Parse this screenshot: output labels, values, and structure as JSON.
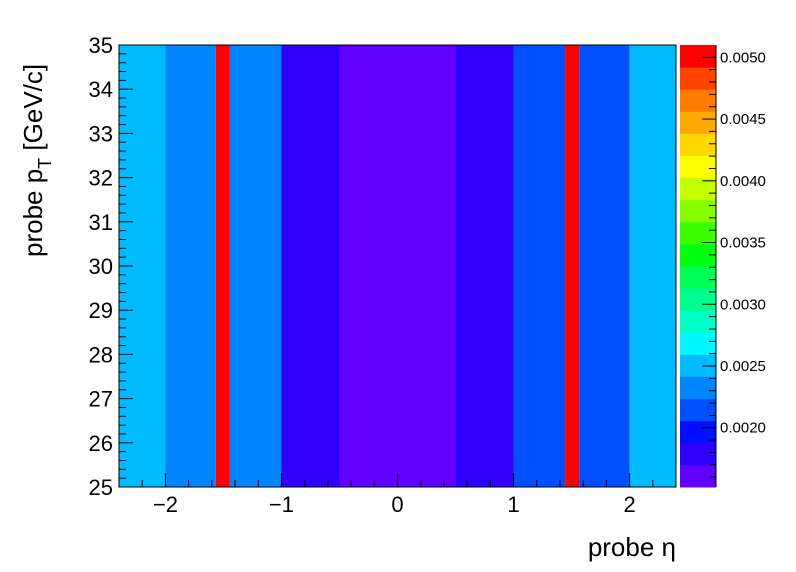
{
  "chart_data": {
    "type": "heatmap",
    "title": "",
    "xlabel": "probe η",
    "ylabel": {
      "main": "probe p",
      "sub": "T",
      "unit": " [GeV/c]"
    },
    "xlim": [
      -2.4,
      2.4
    ],
    "ylim": [
      25,
      35
    ],
    "x_ticks": [
      -2,
      -1,
      0,
      1,
      2
    ],
    "x_tick_labels": [
      "−2",
      "−1",
      "0",
      "1",
      "2"
    ],
    "y_ticks": [
      25,
      26,
      27,
      28,
      29,
      30,
      31,
      32,
      33,
      34,
      35
    ],
    "y_tick_labels": [
      "25",
      "26",
      "27",
      "28",
      "29",
      "30",
      "31",
      "32",
      "33",
      "34",
      "35"
    ],
    "x_bin_edges": [
      -2.4,
      -2.0,
      -1.566,
      -1.4442,
      -1.0,
      -0.5,
      0.5,
      1.0,
      1.4442,
      1.566,
      2.0,
      2.4
    ],
    "y_bin_edges": [
      25,
      35
    ],
    "values": [
      [
        0.00255,
        0.0024,
        0.0051,
        0.0024,
        0.00175,
        0.00165,
        0.00175,
        0.0021,
        0.0051,
        0.0022,
        0.00255
      ]
    ],
    "zlim": [
      0.00152,
      0.0051
    ],
    "z_ticks": [
      0.002,
      0.0025,
      0.003,
      0.0035,
      0.004,
      0.0045,
      0.005
    ],
    "z_tick_labels": [
      "0.0020",
      "0.0025",
      "0.0030",
      "0.0035",
      "0.0040",
      "0.0045",
      "0.0050"
    ],
    "colorbar_palette": [
      "#6100ff",
      "#3000ff",
      "#0010ff",
      "#0050ff",
      "#0085ff",
      "#00bcff",
      "#00f7ff",
      "#00ffc6",
      "#00ff90",
      "#00ff55",
      "#00ff10",
      "#3bff00",
      "#85ff00",
      "#c3ff00",
      "#fbff00",
      "#ffd800",
      "#ffaa00",
      "#ff7c00",
      "#ff4400",
      "#ff0000"
    ],
    "bin_colors": [
      "#00bcff",
      "#0085ff",
      "#ff0000",
      "#0085ff",
      "#3000ff",
      "#6100ff",
      "#3000ff",
      "#0050ff",
      "#ff0000",
      "#0050ff",
      "#00bcff"
    ],
    "grid": false,
    "legend": "colorbar-right"
  }
}
